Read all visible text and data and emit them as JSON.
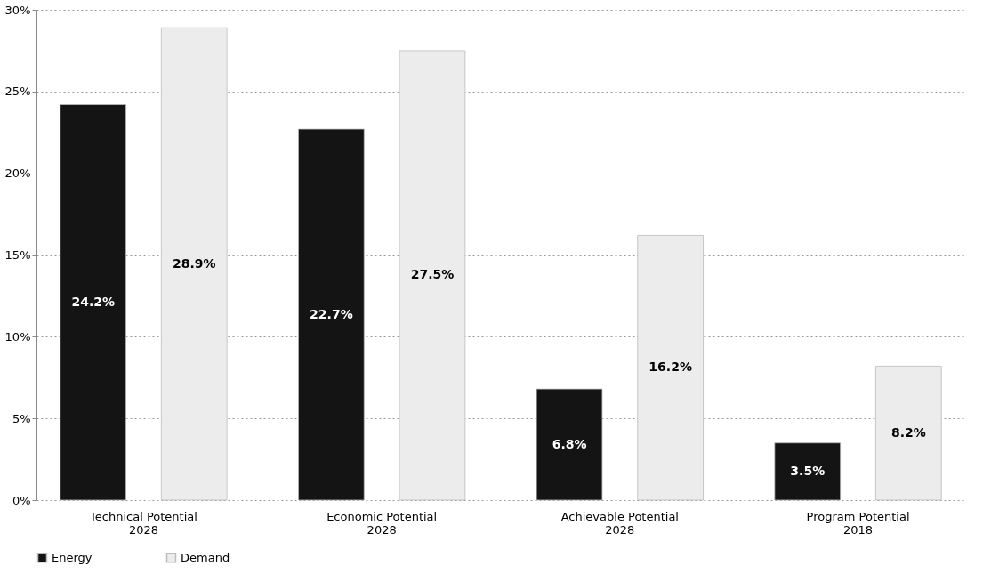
{
  "chart_data": {
    "type": "bar",
    "categories": [
      "Technical Potential 2028",
      "Economic Potential 2028",
      "Achievable Potential 2028",
      "Program Potential 2018"
    ],
    "series": [
      {
        "name": "Energy",
        "color": "#141414",
        "values": [
          24.2,
          22.7,
          6.8,
          3.5
        ],
        "value_labels": [
          "24.2%",
          "22.7%",
          "6.8%",
          "3.5%"
        ]
      },
      {
        "name": "Demand",
        "color": "#ececec",
        "values": [
          28.9,
          27.5,
          16.2,
          8.2
        ],
        "value_labels": [
          "28.9%",
          "27.5%",
          "16.2%",
          "8.2%"
        ]
      }
    ],
    "ylim": [
      0,
      30
    ],
    "yticks": [
      {
        "value": 0,
        "label": "0%"
      },
      {
        "value": 5,
        "label": "5%"
      },
      {
        "value": 10,
        "label": "10%"
      },
      {
        "value": 15,
        "label": "15%"
      },
      {
        "value": 20,
        "label": "20%"
      },
      {
        "value": 25,
        "label": "25%"
      },
      {
        "value": 30,
        "label": "30%"
      }
    ],
    "grid": "y",
    "legend": "bottom"
  }
}
